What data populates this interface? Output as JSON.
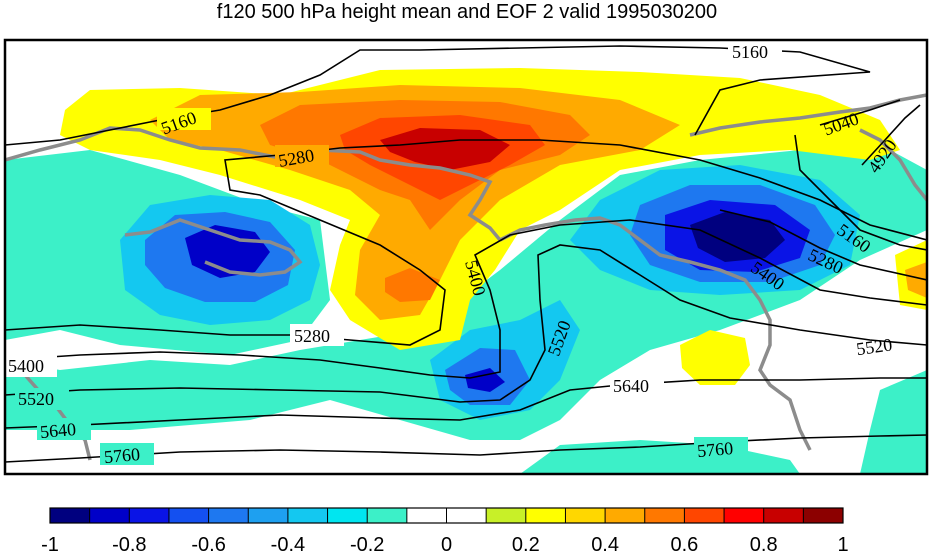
{
  "title": "f120 500 hPa height mean and EOF 2 valid 1995030200",
  "contour_labels": {
    "c5160a": "5160",
    "c5160b": "5160",
    "c5160c": "5160",
    "c5040": "5040",
    "c4920": "4920",
    "c5280a": "5280",
    "c5280b": "5280",
    "c5280c": "5280",
    "c5400a": "5400",
    "c5400b": "5400",
    "c5400c": "5400",
    "c5520a": "5520",
    "c5520b": "5520",
    "c5520c": "5520",
    "c5640a": "5640",
    "c5640b": "5640",
    "c5760a": "5760",
    "c5760b": "5760"
  },
  "colorbar": {
    "colors": [
      "#00007f",
      "#0000c8",
      "#0a14e6",
      "#1450f0",
      "#1e78f0",
      "#1ea0f0",
      "#14c8f0",
      "#00e6f0",
      "#3cf0c8",
      "#ffffff",
      "#ffffff",
      "#c8f028",
      "#ffff00",
      "#ffd700",
      "#ffaa00",
      "#ff7800",
      "#ff4600",
      "#ff0000",
      "#c80000",
      "#8c0000"
    ],
    "ticks": [
      "-1",
      "-0.8",
      "-0.6",
      "-0.4",
      "-0.2",
      "0",
      "0.2",
      "0.4",
      "0.6",
      "0.8",
      "1"
    ]
  }
}
